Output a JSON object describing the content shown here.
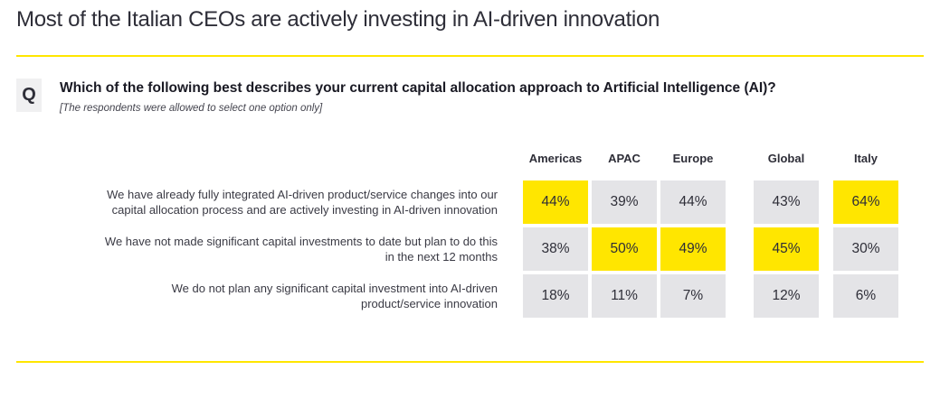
{
  "page": {
    "title": "Most of the Italian CEOs are actively investing in AI-driven innovation",
    "accent_color": "#FFE600"
  },
  "question": {
    "badge": "Q",
    "text": "Which of the following best describes your current capital allocation approach to Artificial Intelligence (AI)?",
    "note": "[The respondents were allowed to select one option only]"
  },
  "chart_data": {
    "type": "table",
    "columns": [
      "Americas",
      "APAC",
      "Europe",
      "Global",
      "Italy"
    ],
    "column_groups": [
      [
        "Americas",
        "APAC",
        "Europe"
      ],
      [
        "Global"
      ],
      [
        "Italy"
      ]
    ],
    "rows": [
      {
        "label": "We have already fully integrated AI-driven product/service changes into our\ncapital allocation process and are actively investing in AI-driven innovation",
        "values": [
          "44%",
          "39%",
          "44%",
          "43%",
          "64%"
        ],
        "highlighted": [
          true,
          false,
          false,
          false,
          true
        ]
      },
      {
        "label": "We have not made significant capital investments to date but plan to do this\nin the next 12 months",
        "values": [
          "38%",
          "50%",
          "49%",
          "45%",
          "30%"
        ],
        "highlighted": [
          false,
          true,
          true,
          true,
          false
        ]
      },
      {
        "label": "We do not plan any significant capital investment into AI-driven\nproduct/service innovation",
        "values": [
          "18%",
          "11%",
          "7%",
          "12%",
          "6%"
        ],
        "highlighted": [
          false,
          false,
          false,
          false,
          false
        ]
      }
    ],
    "highlight_color": "#FFE600",
    "base_cell_color": "#E4E4E7",
    "title": "Most of the Italian CEOs are actively investing in AI-driven innovation",
    "legend": "none",
    "grid": false
  }
}
